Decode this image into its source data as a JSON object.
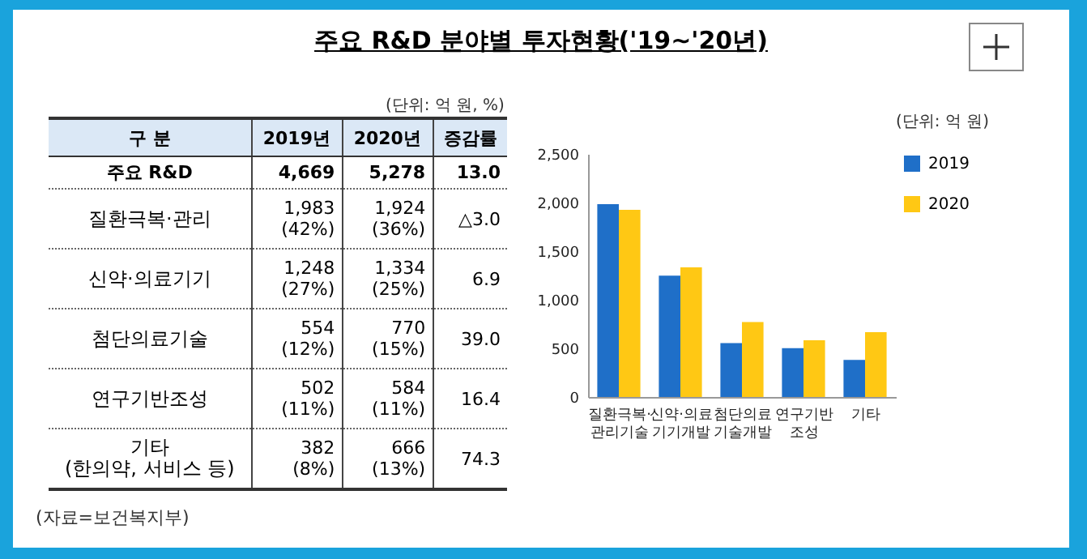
{
  "chart_data": {
    "type": "bar",
    "title": "주요 R&D 분야별 투자현황('19~'20년)",
    "categories": [
      "질환극복·\n관리기술",
      "신약·의료\n기기개발",
      "첨단의료\n기술개발",
      "연구기반\n조성",
      "기타"
    ],
    "series": [
      {
        "name": "2019",
        "color": "#1f6fc8",
        "values": [
          1983,
          1248,
          554,
          502,
          382
        ]
      },
      {
        "name": "2020",
        "color": "#ffc814",
        "values": [
          1924,
          1334,
          770,
          584,
          666
        ]
      }
    ],
    "ylim": [
      0,
      2500
    ],
    "yticks": [
      0,
      500,
      {
        "value": 1000,
        "label": "1,000"
      },
      {
        "value": 1500,
        "label": "1,500"
      },
      {
        "value": 2000,
        "label": "2,000"
      },
      {
        "value": 2500,
        "label": "2,500"
      }
    ],
    "grid": false,
    "legend": "right",
    "annotations": [
      "(단위: 억 원, %)",
      "(단위: 억 원)",
      "(자료=보건복지부)",
      "구 분",
      "2019년",
      "2020년",
      "증감률",
      "주요 R&D",
      "4,669",
      "5,278",
      "13.0",
      "질환극복·관리",
      "1,983\n(42%)",
      "1,924\n(36%)",
      "△3.0",
      "신약·의료기기",
      "1,248\n(27%)",
      "1,334\n(25%)",
      "6.9",
      "첨단의료기술",
      "554\n(12%)",
      "770\n(15%)",
      "39.0",
      "연구기반조성",
      "502\n(11%)",
      "584\n(11%)",
      "16.4",
      "기타\n(한의약, 서비스 등)",
      "382\n(8%)",
      "666\n(13%)",
      "74.3"
    ]
  }
}
